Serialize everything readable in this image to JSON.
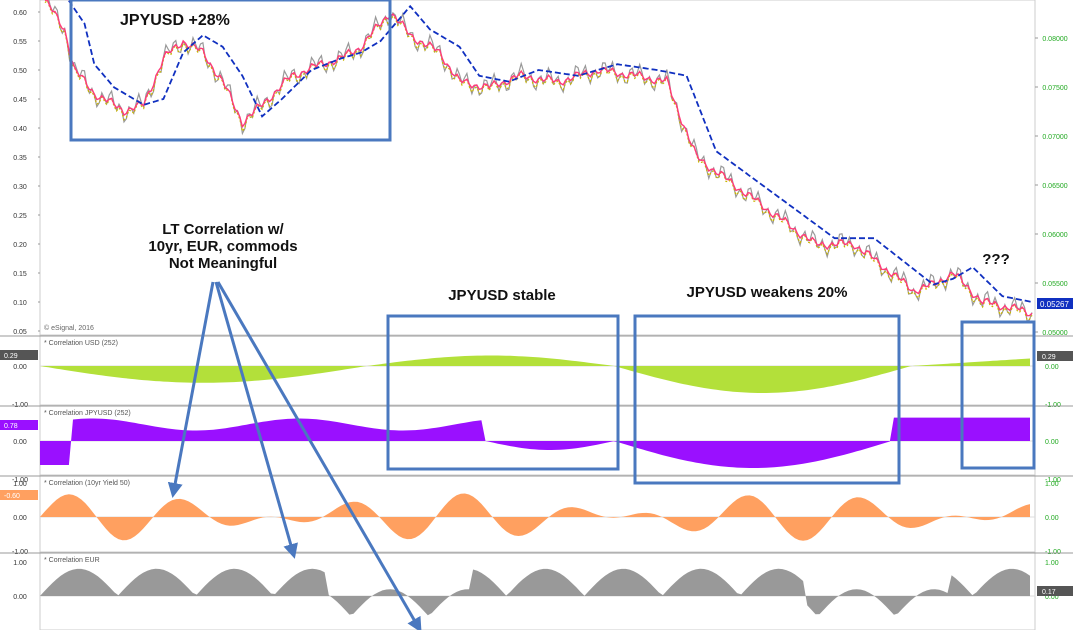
{
  "chart_data": {
    "type": "line",
    "source_label": "© eSignal, 2016",
    "main": {
      "left_ticks": [
        "0.60",
        "0.55",
        "0.50",
        "0.45",
        "0.40",
        "0.35",
        "0.30",
        "0.25",
        "0.20",
        "0.15",
        "0.10",
        "0.05"
      ],
      "right_ticks": [
        "0.08000",
        "0.07500",
        "0.07000",
        "0.06500",
        "0.06000",
        "0.05500",
        "0.05000"
      ],
      "last_price": "0.05267",
      "series": [
        {
          "name": "price",
          "color": "#999999",
          "points": [
            [
              0,
              0.621
            ],
            [
              0.02,
              0.57
            ],
            [
              0.035,
              0.5
            ],
            [
              0.05,
              0.47
            ],
            [
              0.07,
              0.46
            ],
            [
              0.09,
              0.43
            ],
            [
              0.11,
              0.45
            ],
            [
              0.13,
              0.54
            ],
            [
              0.15,
              0.56
            ],
            [
              0.17,
              0.54
            ],
            [
              0.19,
              0.55
            ],
            [
              0.22,
              0.45
            ],
            [
              0.24,
              0.4
            ],
            [
              0.26,
              0.44
            ],
            [
              0.28,
              0.48
            ],
            [
              0.3,
              0.5
            ],
            [
              0.33,
              0.53
            ],
            [
              0.36,
              0.51
            ],
            [
              0.39,
              0.54
            ],
            [
              0.42,
              0.55
            ],
            [
              0.45,
              0.56
            ],
            [
              0.48,
              0.58
            ],
            [
              0.5,
              0.6
            ],
            [
              0.52,
              0.62
            ],
            [
              0.55,
              0.58
            ],
            [
              0.58,
              0.55
            ],
            [
              0.6,
              0.52
            ],
            [
              0.62,
              0.53
            ],
            [
              0.65,
              0.51
            ],
            [
              0.68,
              0.48
            ],
            [
              0.71,
              0.47
            ],
            [
              0.73,
              0.48
            ],
            [
              0.76,
              0.46
            ],
            [
              0.79,
              0.47
            ],
            [
              0.82,
              0.48
            ],
            [
              0.85,
              0.49
            ],
            [
              0.87,
              0.5
            ],
            [
              0.9,
              0.505
            ],
            [
              0.93,
              0.5
            ],
            [
              0.96,
              0.48
            ],
            [
              0.99,
              0.46
            ],
            [
              1,
              0.44
            ]
          ]
        }
      ]
    },
    "panels": [
      {
        "title": "* Correlation USD (252)",
        "badge": "0.29",
        "badge_right": "0.29",
        "ticks": [
          "0.00",
          "-1.00"
        ],
        "color": "#b3e03a"
      },
      {
        "title": "* Correlation JPYUSD (252)",
        "badge": "0.78",
        "ticks": [
          "0.00",
          "-1.00"
        ],
        "color": "#9a10ff"
      },
      {
        "title": "* Correlation (10yr Yield 50)",
        "badge": "-0.60",
        "ticks": [
          "1.00",
          "0.00",
          "-1.00"
        ],
        "color": "#ffa060"
      },
      {
        "title": "* Correlation EUR",
        "badge_right": "0.17",
        "ticks": [
          "1.00",
          "0.00"
        ],
        "color": "#999999"
      }
    ],
    "annotations": [
      {
        "text": "JPYUSD +28%"
      },
      {
        "text": "LT Correlation w/"
      },
      {
        "text": "10yr, EUR, commods"
      },
      {
        "text": "Not Meaningful"
      },
      {
        "text": "JPYUSD stable"
      },
      {
        "text": "JPYUSD weakens 20%"
      },
      {
        "text": "???"
      }
    ],
    "colors": {
      "price": "#999999",
      "ma_fast": "#ff3a7a",
      "ma_dot": "#c8b400",
      "ma_slow": "#1030c0",
      "box": "#4a78bf",
      "axis_green": "#22aa22"
    }
  }
}
